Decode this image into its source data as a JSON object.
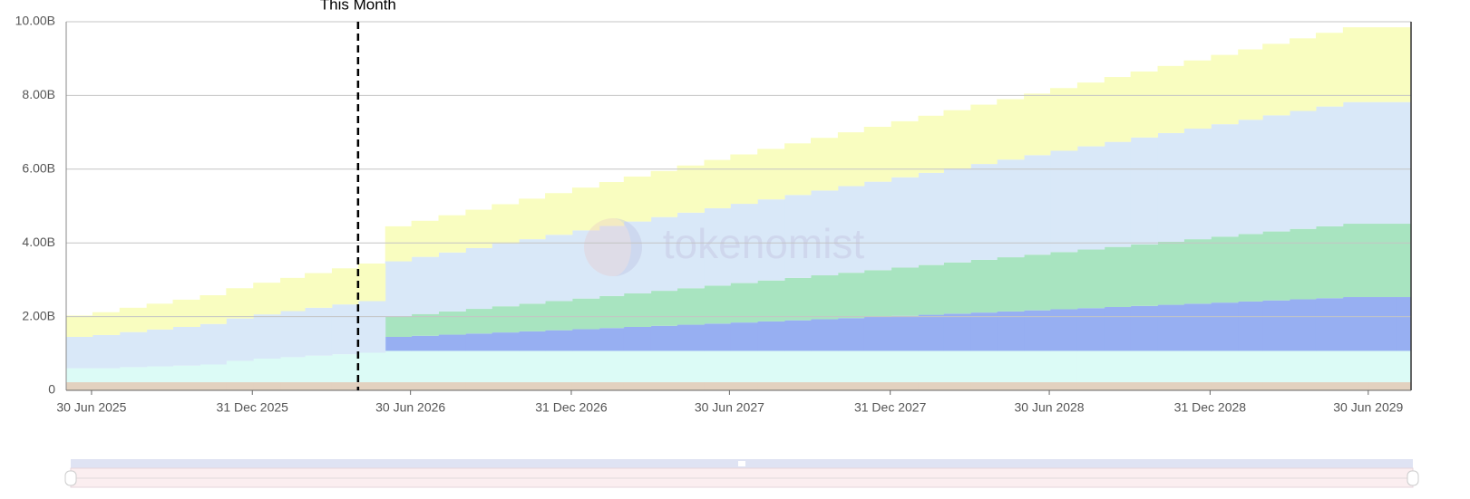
{
  "chart_data": {
    "type": "stepstack",
    "annotation": {
      "x": "2026-05-01",
      "label": "This Month"
    },
    "watermark": "tokenomist",
    "xlim": [
      "2025-06-01",
      "2029-08-18"
    ],
    "xticks": [
      {
        "value": "2025-06-30",
        "label": "30 Jun 2025"
      },
      {
        "value": "2025-12-31",
        "label": "31 Dec 2025"
      },
      {
        "value": "2026-06-30",
        "label": "30 Jun 2026"
      },
      {
        "value": "2026-12-31",
        "label": "31 Dec 2026"
      },
      {
        "value": "2027-06-30",
        "label": "30 Jun 2027"
      },
      {
        "value": "2027-12-31",
        "label": "31 Dec 2027"
      },
      {
        "value": "2028-06-30",
        "label": "30 Jun 2028"
      },
      {
        "value": "2028-12-31",
        "label": "31 Dec 2028"
      },
      {
        "value": "2029-06-30",
        "label": "30 Jun 2029"
      }
    ],
    "ylim": [
      0,
      10000000000
    ],
    "yticks": [
      0,
      {
        "value": 2000000000,
        "label": "2.00B"
      },
      {
        "value": 4000000000,
        "label": "4.00B"
      },
      {
        "value": 6000000000,
        "label": "6.00B"
      },
      {
        "value": 8000000000,
        "label": "8.00B"
      },
      {
        "value": 10000000000,
        "label": "10.00B"
      }
    ],
    "grid": true,
    "x": [
      "2025-06-01",
      "2025-07-01",
      "2025-08-01",
      "2025-09-01",
      "2025-10-01",
      "2025-11-01",
      "2025-12-01",
      "2026-01-01",
      "2026-02-01",
      "2026-03-01",
      "2026-04-01",
      "2026-05-01",
      "2026-06-01",
      "2026-07-01",
      "2026-08-01",
      "2026-09-01",
      "2026-10-01",
      "2026-11-01",
      "2026-12-01",
      "2027-01-01",
      "2027-02-01",
      "2027-03-01",
      "2027-04-01",
      "2027-05-01",
      "2027-06-01",
      "2027-07-01",
      "2027-08-01",
      "2027-09-01",
      "2027-10-01",
      "2027-11-01",
      "2027-12-01",
      "2028-01-01",
      "2028-02-01",
      "2028-03-01",
      "2028-04-01",
      "2028-05-01",
      "2028-06-01",
      "2028-07-01",
      "2028-08-01",
      "2028-09-01",
      "2028-10-01",
      "2028-11-01",
      "2028-12-01",
      "2029-01-01",
      "2029-02-01",
      "2029-03-01",
      "2029-04-01",
      "2029-05-01",
      "2029-06-01",
      "2029-07-01",
      "2029-08-01"
    ],
    "series": [
      {
        "color": "#e2d1bf",
        "values": [
          220000000,
          220000000,
          220000000,
          220000000,
          220000000,
          220000000,
          220000000,
          220000000,
          220000000,
          220000000,
          220000000,
          220000000,
          220000000,
          220000000,
          220000000,
          220000000,
          220000000,
          220000000,
          220000000,
          220000000,
          220000000,
          220000000,
          220000000,
          220000000,
          220000000,
          220000000,
          220000000,
          220000000,
          220000000,
          220000000,
          220000000,
          220000000,
          220000000,
          220000000,
          220000000,
          220000000,
          220000000,
          220000000,
          220000000,
          220000000,
          220000000,
          220000000,
          220000000,
          220000000,
          220000000,
          220000000,
          220000000,
          220000000,
          220000000,
          220000000,
          220000000
        ]
      },
      {
        "color": "#dcfbf6",
        "values": [
          380000000,
          380000000,
          410000000,
          430000000,
          450000000,
          480000000,
          580000000,
          640000000,
          680000000,
          720000000,
          760000000,
          800000000,
          850000000,
          850000000,
          850000000,
          850000000,
          850000000,
          850000000,
          850000000,
          850000000,
          850000000,
          850000000,
          850000000,
          850000000,
          850000000,
          850000000,
          850000000,
          850000000,
          850000000,
          850000000,
          850000000,
          850000000,
          850000000,
          850000000,
          850000000,
          850000000,
          850000000,
          850000000,
          850000000,
          850000000,
          850000000,
          850000000,
          850000000,
          850000000,
          850000000,
          850000000,
          850000000,
          850000000,
          850000000,
          850000000,
          850000000
        ]
      },
      {
        "color": "#97aff2",
        "values": [
          0,
          0,
          0,
          0,
          0,
          0,
          0,
          0,
          0,
          0,
          0,
          0,
          380000000,
          410000000,
          440000000,
          470000000,
          500000000,
          530000000,
          560000000,
          590000000,
          620000000,
          650000000,
          680000000,
          710000000,
          740000000,
          770000000,
          800000000,
          830000000,
          860000000,
          890000000,
          920000000,
          950000000,
          980000000,
          1010000000,
          1040000000,
          1070000000,
          1100000000,
          1130000000,
          1160000000,
          1190000000,
          1220000000,
          1250000000,
          1280000000,
          1310000000,
          1340000000,
          1370000000,
          1400000000,
          1430000000,
          1460000000,
          1460000000,
          1460000000
        ]
      },
      {
        "color": "#a8e4c0",
        "values": [
          0,
          0,
          0,
          0,
          0,
          0,
          0,
          0,
          0,
          0,
          0,
          0,
          550000000,
          590000000,
          630000000,
          670000000,
          710000000,
          750000000,
          790000000,
          830000000,
          870000000,
          910000000,
          950000000,
          990000000,
          1030000000,
          1070000000,
          1110000000,
          1150000000,
          1190000000,
          1230000000,
          1270000000,
          1310000000,
          1350000000,
          1390000000,
          1430000000,
          1470000000,
          1510000000,
          1550000000,
          1590000000,
          1630000000,
          1670000000,
          1710000000,
          1750000000,
          1790000000,
          1830000000,
          1870000000,
          1910000000,
          1950000000,
          1990000000,
          1990000000,
          1990000000
        ]
      },
      {
        "color": "#d9e8f8",
        "values": [
          850000000,
          900000000,
          950000000,
          1000000000,
          1050000000,
          1100000000,
          1150000000,
          1200000000,
          1250000000,
          1300000000,
          1350000000,
          1400000000,
          1500000000,
          1550000000,
          1600000000,
          1650000000,
          1700000000,
          1750000000,
          1800000000,
          1850000000,
          1900000000,
          1950000000,
          2000000000,
          2050000000,
          2100000000,
          2150000000,
          2200000000,
          2250000000,
          2300000000,
          2350000000,
          2400000000,
          2450000000,
          2500000000,
          2550000000,
          2600000000,
          2650000000,
          2700000000,
          2750000000,
          2800000000,
          2850000000,
          2900000000,
          2950000000,
          3000000000,
          3050000000,
          3100000000,
          3150000000,
          3200000000,
          3250000000,
          3300000000,
          3300000000,
          3300000000
        ]
      },
      {
        "color": "#f9fdc0",
        "values": [
          580000000,
          620000000,
          660000000,
          700000000,
          740000000,
          780000000,
          820000000,
          860000000,
          900000000,
          940000000,
          980000000,
          1020000000,
          950000000,
          980000000,
          1010000000,
          1040000000,
          1070000000,
          1100000000,
          1130000000,
          1160000000,
          1190000000,
          1220000000,
          1250000000,
          1280000000,
          1310000000,
          1340000000,
          1370000000,
          1400000000,
          1430000000,
          1460000000,
          1490000000,
          1520000000,
          1550000000,
          1580000000,
          1610000000,
          1640000000,
          1670000000,
          1700000000,
          1730000000,
          1760000000,
          1790000000,
          1820000000,
          1850000000,
          1880000000,
          1910000000,
          1940000000,
          1970000000,
          2000000000,
          2030000000,
          2030000000,
          2030000000
        ]
      }
    ]
  }
}
